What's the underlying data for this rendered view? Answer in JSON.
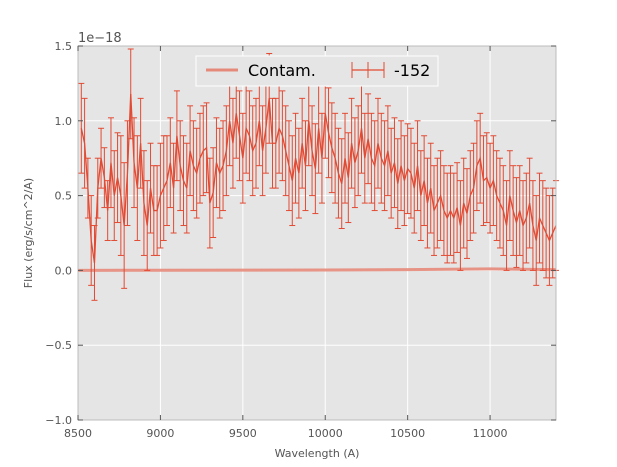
{
  "chart_data": {
    "type": "line",
    "xlabel": "Wavelength (A)",
    "ylabel": "Flux (erg/s/cm^2/A)",
    "offset_text": "1e−18",
    "xlim": [
      8500,
      11400
    ],
    "ylim": [
      -1.0,
      1.5
    ],
    "xticks": [
      8500,
      9000,
      9500,
      10000,
      10500,
      11000
    ],
    "xtick_labels": [
      "8500",
      "9000",
      "9500",
      "10000",
      "10500",
      "11000"
    ],
    "yticks": [
      -1.0,
      -0.5,
      0.0,
      0.5,
      1.0,
      1.5
    ],
    "ytick_labels": [
      "−1.0",
      "−0.5",
      "0.0",
      "0.5",
      "1.0",
      "1.5"
    ],
    "grid": true,
    "legend_placement": "upper-center",
    "colors": {
      "spectrum": "#e24a33",
      "contam": "#e58a7a",
      "background": "#e5e5e5",
      "grid": "#ffffff"
    },
    "series": [
      {
        "name": "Contam.",
        "x": [
          8500,
          9000,
          9500,
          10000,
          10500,
          11000,
          11400
        ],
        "y": [
          0.0,
          0.001,
          0.002,
          0.003,
          0.005,
          0.01,
          0.005
        ]
      },
      {
        "name": "-152",
        "x": [
          8520,
          8540,
          8560,
          8580,
          8600,
          8620,
          8640,
          8660,
          8680,
          8700,
          8720,
          8740,
          8760,
          8780,
          8800,
          8820,
          8840,
          8860,
          8880,
          8900,
          8920,
          8940,
          8960,
          8980,
          9000,
          9020,
          9040,
          9060,
          9080,
          9100,
          9120,
          9140,
          9160,
          9180,
          9200,
          9220,
          9240,
          9260,
          9280,
          9300,
          9320,
          9340,
          9360,
          9380,
          9400,
          9420,
          9440,
          9460,
          9480,
          9500,
          9520,
          9540,
          9560,
          9580,
          9600,
          9620,
          9640,
          9660,
          9680,
          9700,
          9720,
          9740,
          9760,
          9780,
          9800,
          9820,
          9840,
          9860,
          9880,
          9900,
          9920,
          9940,
          9960,
          9980,
          10000,
          10020,
          10040,
          10060,
          10080,
          10100,
          10120,
          10140,
          10160,
          10180,
          10200,
          10220,
          10240,
          10260,
          10280,
          10300,
          10320,
          10340,
          10360,
          10380,
          10400,
          10420,
          10440,
          10460,
          10480,
          10500,
          10520,
          10540,
          10560,
          10580,
          10600,
          10620,
          10640,
          10660,
          10680,
          10700,
          10720,
          10740,
          10760,
          10780,
          10800,
          10820,
          10840,
          10860,
          10880,
          10900,
          10920,
          10940,
          10960,
          10980,
          11000,
          11020,
          11040,
          11060,
          11080,
          11100,
          11120,
          11140,
          11160,
          11180,
          11200,
          11220,
          11240,
          11260,
          11280,
          11300,
          11320,
          11340,
          11360,
          11380,
          11400
        ],
        "y": [
          0.95,
          0.85,
          0.55,
          0.2,
          0.05,
          0.55,
          0.75,
          0.62,
          0.4,
          0.72,
          0.5,
          0.62,
          0.5,
          0.3,
          0.65,
          1.18,
          0.72,
          0.55,
          0.85,
          0.45,
          0.3,
          0.55,
          0.4,
          0.4,
          0.5,
          0.55,
          0.6,
          0.72,
          0.55,
          0.9,
          0.7,
          0.6,
          0.55,
          0.8,
          0.7,
          0.65,
          0.75,
          0.8,
          0.82,
          0.45,
          0.52,
          0.72,
          0.65,
          0.7,
          0.8,
          1.0,
          0.85,
          1.05,
          0.9,
          0.75,
          0.95,
          0.9,
          0.8,
          0.85,
          1.0,
          0.8,
          0.95,
          1.15,
          0.85,
          0.85,
          0.95,
          0.9,
          0.8,
          0.7,
          0.6,
          0.75,
          0.65,
          0.85,
          0.7,
          1.0,
          0.8,
          0.68,
          0.95,
          0.75,
          1.05,
          0.92,
          0.82,
          0.75,
          0.65,
          0.58,
          0.75,
          0.62,
          0.85,
          0.72,
          0.8,
          0.95,
          0.75,
          0.88,
          0.75,
          0.7,
          0.85,
          0.75,
          0.7,
          0.8,
          0.65,
          0.72,
          0.58,
          0.7,
          0.6,
          0.68,
          0.65,
          0.55,
          0.7,
          0.5,
          0.6,
          0.45,
          0.55,
          0.4,
          0.45,
          0.5,
          0.4,
          0.35,
          0.4,
          0.35,
          0.42,
          0.3,
          0.45,
          0.38,
          0.5,
          0.55,
          0.7,
          0.75,
          0.6,
          0.62,
          0.55,
          0.6,
          0.5,
          0.45,
          0.4,
          0.3,
          0.5,
          0.4,
          0.32,
          0.4,
          0.3,
          0.35,
          0.45,
          0.3,
          0.2,
          0.35,
          0.3,
          0.25,
          0.2,
          0.25,
          0.3
        ],
        "yerr": [
          0.3,
          0.3,
          0.2,
          0.3,
          0.25,
          0.2,
          0.2,
          0.2,
          0.2,
          0.3,
          0.3,
          0.3,
          0.4,
          0.42,
          0.35,
          0.3,
          0.3,
          0.35,
          0.3,
          0.35,
          0.3,
          0.3,
          0.3,
          0.3,
          0.35,
          0.35,
          0.3,
          0.3,
          0.3,
          0.3,
          0.3,
          0.3,
          0.3,
          0.3,
          0.3,
          0.3,
          0.3,
          0.3,
          0.3,
          0.3,
          0.3,
          0.3,
          0.3,
          0.3,
          0.3,
          0.3,
          0.3,
          0.3,
          0.3,
          0.3,
          0.3,
          0.3,
          0.3,
          0.3,
          0.3,
          0.3,
          0.3,
          0.3,
          0.3,
          0.3,
          0.3,
          0.3,
          0.3,
          0.3,
          0.3,
          0.3,
          0.3,
          0.3,
          0.3,
          0.3,
          0.3,
          0.3,
          0.3,
          0.3,
          0.3,
          0.3,
          0.3,
          0.3,
          0.3,
          0.3,
          0.3,
          0.3,
          0.3,
          0.3,
          0.3,
          0.3,
          0.3,
          0.3,
          0.3,
          0.3,
          0.3,
          0.3,
          0.3,
          0.3,
          0.3,
          0.3,
          0.3,
          0.3,
          0.3,
          0.3,
          0.3,
          0.3,
          0.3,
          0.3,
          0.3,
          0.3,
          0.3,
          0.3,
          0.3,
          0.3,
          0.3,
          0.3,
          0.3,
          0.3,
          0.3,
          0.3,
          0.3,
          0.3,
          0.3,
          0.3,
          0.3,
          0.3,
          0.3,
          0.3,
          0.3,
          0.3,
          0.3,
          0.3,
          0.3,
          0.3,
          0.3,
          0.3,
          0.3,
          0.3,
          0.3,
          0.3,
          0.3,
          0.3,
          0.3,
          0.3,
          0.3,
          0.3,
          0.3,
          0.3,
          0.3
        ]
      }
    ]
  }
}
